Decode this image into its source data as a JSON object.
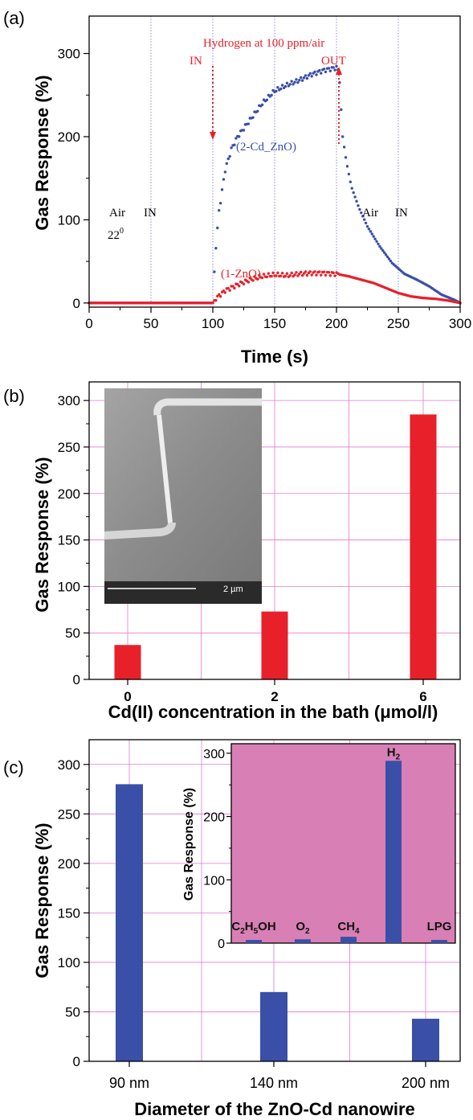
{
  "chart_data": [
    {
      "panel_label": "(a)",
      "type": "scatter",
      "xlabel": "Time (s)",
      "ylabel": "Gas Response (%)",
      "xlim": [
        0,
        300
      ],
      "ylim": [
        -5,
        345
      ],
      "xticks": [
        "0",
        "50",
        "100",
        "150",
        "200",
        "250",
        "300"
      ],
      "yticks": [
        "0",
        "100",
        "200",
        "300"
      ],
      "grid": "vertical dotted lines at x = 50, 100, 150, 200, 250",
      "annotations": {
        "hydrogen": "Hydrogen at 100 ppm/air",
        "gas_in": "IN",
        "gas_out": "OUT",
        "air_left": "Air",
        "in_left": "IN",
        "temp_base": "22",
        "temp_sup": "0",
        "air_right": "Air",
        "in_right": "IN"
      },
      "series": [
        {
          "name": "(2-Cd_ZnO)",
          "color": "#3a4fa8",
          "points": [
            [
              0,
              0
            ],
            [
              25,
              0
            ],
            [
              50,
              0
            ],
            [
              75,
              0
            ],
            [
              100,
              0
            ],
            [
              102,
              60
            ],
            [
              105,
              110
            ],
            [
              110,
              160
            ],
            [
              115,
              185
            ],
            [
              120,
              200
            ],
            [
              130,
              220
            ],
            [
              140,
              240
            ],
            [
              150,
              255
            ],
            [
              160,
              262
            ],
            [
              170,
              268
            ],
            [
              180,
              275
            ],
            [
              190,
              280
            ],
            [
              200,
              283
            ],
            [
              202,
              278
            ],
            [
              205,
              200
            ],
            [
              208,
              170
            ],
            [
              212,
              140
            ],
            [
              218,
              115
            ],
            [
              225,
              92
            ],
            [
              235,
              68
            ],
            [
              245,
              48
            ],
            [
              255,
              35
            ],
            [
              265,
              28
            ],
            [
              275,
              20
            ],
            [
              285,
              10
            ],
            [
              295,
              4
            ],
            [
              300,
              0
            ]
          ]
        },
        {
          "name": "(1-ZnO)",
          "color": "#e8202a",
          "points": [
            [
              0,
              0
            ],
            [
              25,
              0
            ],
            [
              50,
              0
            ],
            [
              75,
              0
            ],
            [
              100,
              0
            ],
            [
              102,
              5
            ],
            [
              110,
              15
            ],
            [
              120,
              22
            ],
            [
              130,
              28
            ],
            [
              140,
              32
            ],
            [
              150,
              34
            ],
            [
              160,
              33
            ],
            [
              170,
              35
            ],
            [
              180,
              36
            ],
            [
              190,
              36
            ],
            [
              200,
              35
            ],
            [
              210,
              32
            ],
            [
              220,
              28
            ],
            [
              230,
              24
            ],
            [
              240,
              18
            ],
            [
              250,
              12
            ],
            [
              260,
              8
            ],
            [
              270,
              6
            ],
            [
              280,
              5
            ],
            [
              290,
              3
            ],
            [
              300,
              0
            ]
          ]
        }
      ]
    },
    {
      "panel_label": "(b)",
      "type": "bar",
      "xlabel": "Cd(II) concentration in the bath (μmol/l)",
      "ylabel": "Gas Response (%)",
      "categories": [
        "0",
        "2",
        "6"
      ],
      "values": [
        37,
        73,
        285
      ],
      "ylim": [
        0,
        320
      ],
      "yticks": [
        "0",
        "50",
        "100",
        "150",
        "200",
        "250",
        "300"
      ],
      "bar_color": "#e8202a",
      "grid": "on",
      "inset": {
        "kind": "SEM micrograph",
        "scale_bar": "2 µm"
      }
    },
    {
      "panel_label": "(c)",
      "type": "bar",
      "xlabel": "Diameter of the ZnO-Cd nanowire",
      "ylabel": "Gas Response (%)",
      "categories": [
        "90  nm",
        "140  nm",
        "200  nm"
      ],
      "values": [
        280,
        70,
        43
      ],
      "ylim": [
        0,
        325
      ],
      "yticks": [
        "0",
        "50",
        "100",
        "150",
        "200",
        "250",
        "300"
      ],
      "bar_color": "#3a4fa8",
      "grid": "on",
      "inset": {
        "type": "bar",
        "ylabel": "Gas Response (%)",
        "ylim": [
          0,
          315
        ],
        "yticks": [
          "0",
          "100",
          "200",
          "300"
        ],
        "background": "#d87fb5",
        "bar_color": "#3a4fa8",
        "categories": [
          {
            "parts": [
              [
                "C",
                ""
              ],
              [
                "2",
                "sub"
              ],
              [
                "H",
                ""
              ],
              [
                "5",
                "sub"
              ],
              [
                "OH",
                ""
              ]
            ]
          },
          {
            "parts": [
              [
                "O",
                ""
              ],
              [
                "2",
                "sub"
              ]
            ]
          },
          {
            "parts": [
              [
                "CH",
                ""
              ],
              [
                "4",
                "sub"
              ]
            ]
          },
          {
            "parts": [
              [
                "H",
                ""
              ],
              [
                "2",
                "sub"
              ]
            ]
          },
          {
            "parts": [
              [
                "LPG",
                ""
              ]
            ]
          }
        ],
        "values": [
          5,
          6,
          10,
          288,
          5
        ]
      }
    }
  ]
}
